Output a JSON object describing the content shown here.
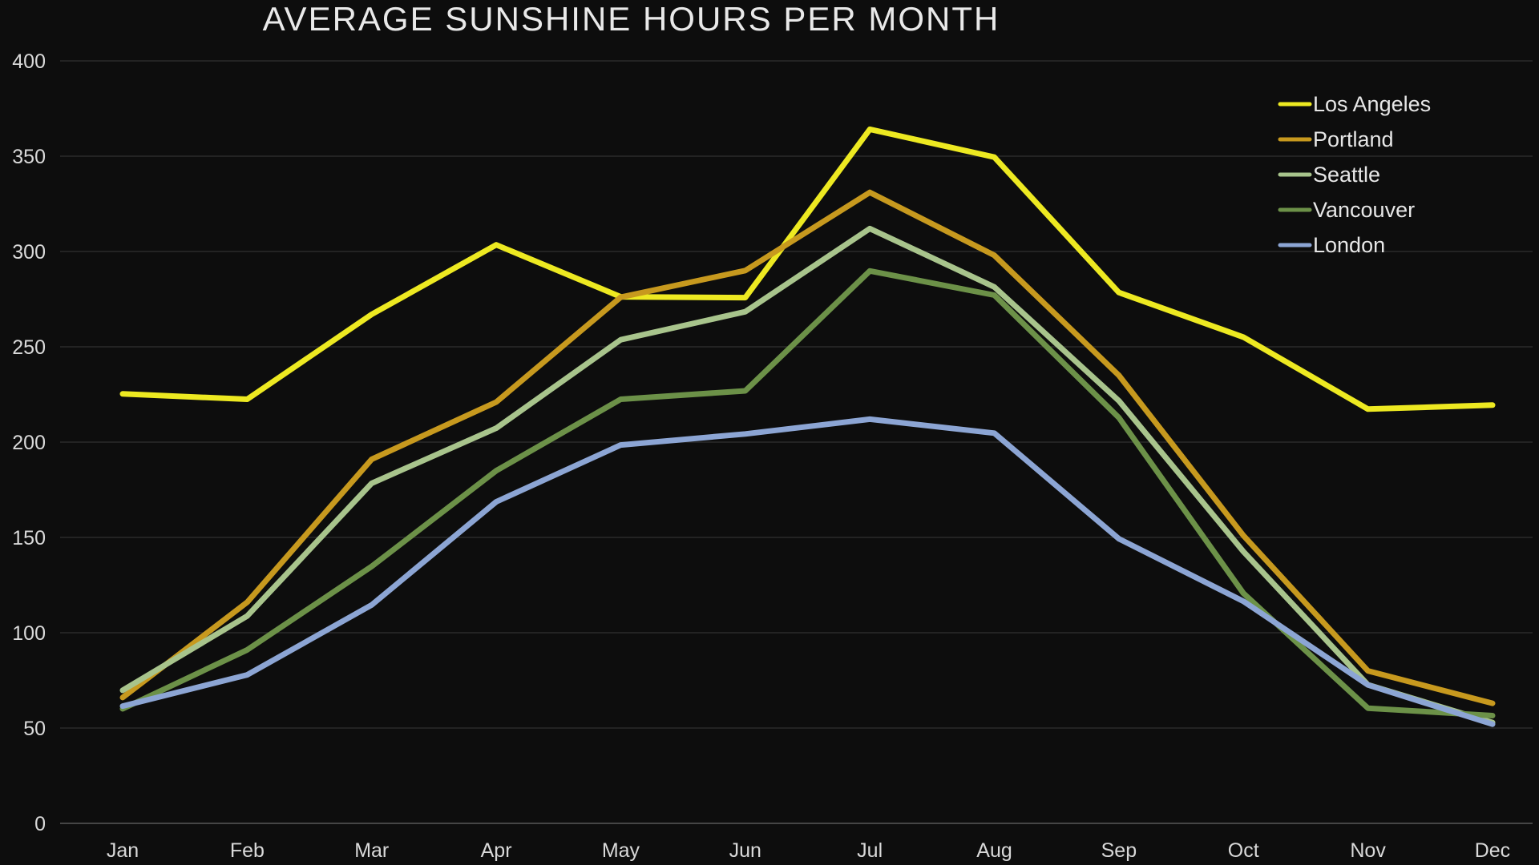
{
  "page": {
    "background_color": "#0d0d0d",
    "text_color": "#e9e9e9"
  },
  "chart_data": {
    "type": "line",
    "title": "AVERAGE SUNSHINE HOURS PER MONTH",
    "xlabel": "",
    "ylabel": "",
    "categories": [
      "Jan",
      "Feb",
      "Mar",
      "Apr",
      "May",
      "Jun",
      "Jul",
      "Aug",
      "Sep",
      "Oct",
      "Nov",
      "Dec"
    ],
    "series": [
      {
        "name": "Los Angeles",
        "color": "#ede921",
        "values": [
          225.3,
          222.5,
          267.0,
          303.5,
          276.2,
          275.8,
          364.1,
          349.5,
          278.5,
          255.1,
          217.3,
          219.4
        ]
      },
      {
        "name": "Portland",
        "color": "#c7991e",
        "values": [
          66.0,
          116.0,
          191.0,
          221.0,
          276.0,
          290.0,
          331.0,
          298.0,
          235.0,
          151.0,
          80.0,
          63.0
        ]
      },
      {
        "name": "Seattle",
        "color": "#a8c48c",
        "values": [
          69.8,
          108.8,
          178.4,
          207.3,
          253.7,
          268.4,
          312.0,
          281.4,
          221.7,
          142.6,
          72.7,
          52.9
        ]
      },
      {
        "name": "Vancouver",
        "color": "#6c9148",
        "values": [
          60.1,
          91.0,
          134.8,
          185.0,
          222.5,
          226.9,
          289.8,
          277.1,
          212.8,
          120.7,
          60.4,
          56.5
        ]
      },
      {
        "name": "London",
        "color": "#8ca5d4",
        "values": [
          61.5,
          77.9,
          114.6,
          168.7,
          198.5,
          204.3,
          212.0,
          204.7,
          149.3,
          116.5,
          72.6,
          52.0
        ]
      }
    ],
    "ylim": [
      0,
      400
    ],
    "y_ticks": [
      0,
      50,
      100,
      150,
      200,
      250,
      300,
      350,
      400
    ],
    "grid": true,
    "legend_position": "top-right-inside",
    "gridline_color": "#2b2b2b",
    "axis_line_color": "#454545",
    "axis_label_color": "#d9d9d9"
  }
}
